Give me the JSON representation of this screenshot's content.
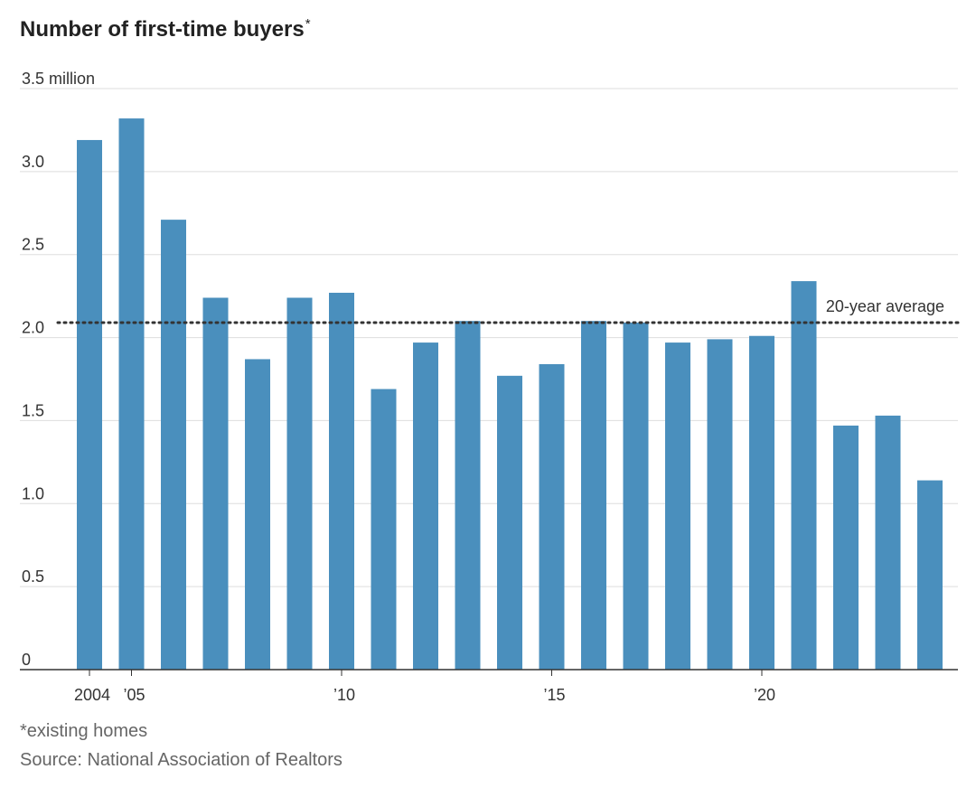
{
  "chart_data": {
    "type": "bar",
    "title": "Number of first-time buyers",
    "title_marker": "*",
    "ylabel": "",
    "xlabel": "",
    "ylim": [
      0,
      3.5
    ],
    "y_unit_label": "million",
    "y_ticks": [
      {
        "value": 0,
        "label": "0"
      },
      {
        "value": 0.5,
        "label": "0.5"
      },
      {
        "value": 1.0,
        "label": "1.0"
      },
      {
        "value": 1.5,
        "label": "1.5"
      },
      {
        "value": 2.0,
        "label": "2.0"
      },
      {
        "value": 2.5,
        "label": "2.5"
      },
      {
        "value": 3.0,
        "label": "3.0"
      },
      {
        "value": 3.5,
        "label": "3.5 million"
      }
    ],
    "categories": [
      "2004",
      "2005",
      "2006",
      "2007",
      "2008",
      "2009",
      "2010",
      "2011",
      "2012",
      "2013",
      "2014",
      "2015",
      "2016",
      "2017",
      "2018",
      "2019",
      "2020",
      "2021",
      "2022",
      "2023",
      "2024"
    ],
    "values": [
      3.19,
      3.32,
      2.71,
      2.24,
      1.87,
      2.24,
      2.27,
      1.69,
      1.97,
      2.1,
      1.77,
      1.84,
      2.1,
      2.09,
      1.97,
      1.99,
      2.01,
      2.34,
      1.47,
      1.53,
      1.14
    ],
    "x_tick_labels": [
      {
        "category": "2004",
        "label": "2004"
      },
      {
        "category": "2005",
        "label": "’05"
      },
      {
        "category": "2010",
        "label": "’10"
      },
      {
        "category": "2015",
        "label": "’15"
      },
      {
        "category": "2020",
        "label": "’20"
      }
    ],
    "reference_line": {
      "value": 2.09,
      "label": "20-year average",
      "style": "dotted"
    },
    "grid": true,
    "colors": {
      "bar": "#4a8fbd",
      "grid": "#dddddd",
      "axis": "#333333",
      "reference": "#333333"
    }
  },
  "footnote": "*existing homes",
  "source": "Source: National Association of Realtors"
}
